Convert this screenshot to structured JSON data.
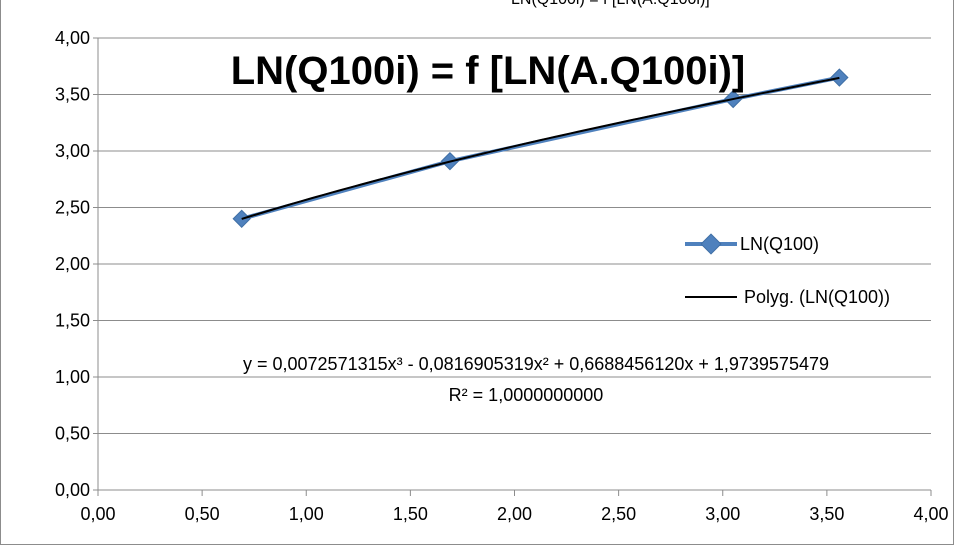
{
  "chart_data": {
    "type": "scatter",
    "title": "LN(Q100i) = f [LN(A.Q100i)]",
    "top_clipped_text": "LN(Q100i) = f [LN(A.Q100i)]",
    "xlabel": "",
    "ylabel": "",
    "xlim": [
      0,
      4
    ],
    "ylim": [
      0,
      4
    ],
    "x_ticks": [
      0,
      0.5,
      1,
      1.5,
      2,
      2.5,
      3,
      3.5,
      4
    ],
    "x_tick_labels": [
      "0,00",
      "0,50",
      "1,00",
      "1,50",
      "2,00",
      "2,50",
      "3,00",
      "3,50",
      "4,00"
    ],
    "y_ticks": [
      0,
      0.5,
      1,
      1.5,
      2,
      2.5,
      3,
      3.5,
      4
    ],
    "y_tick_labels": [
      "0,00",
      "0,50",
      "1,00",
      "1,50",
      "2,00",
      "2,50",
      "3,00",
      "3,50",
      "4,00"
    ],
    "grid": "horizontal",
    "legend_position": "right",
    "series": [
      {
        "name": "LN(Q100)",
        "color": "#4f81bd",
        "marker": "diamond",
        "x": [
          0.69,
          1.69,
          3.05,
          3.56
        ],
        "y": [
          2.4,
          2.91,
          3.46,
          3.65
        ]
      }
    ],
    "trendline": {
      "name": "Polyg. (LN(Q100))",
      "color": "#000000",
      "type": "polynomial",
      "coefficients": [
        1.9739575479,
        0.668845612,
        -0.0816905319,
        0.0072571315
      ],
      "equation_text": "y = 0,0072571315x³ - 0,0816905319x² + 0,6688456120x + 1,9739575479",
      "r2_text": "R² = 1,0000000000"
    }
  }
}
